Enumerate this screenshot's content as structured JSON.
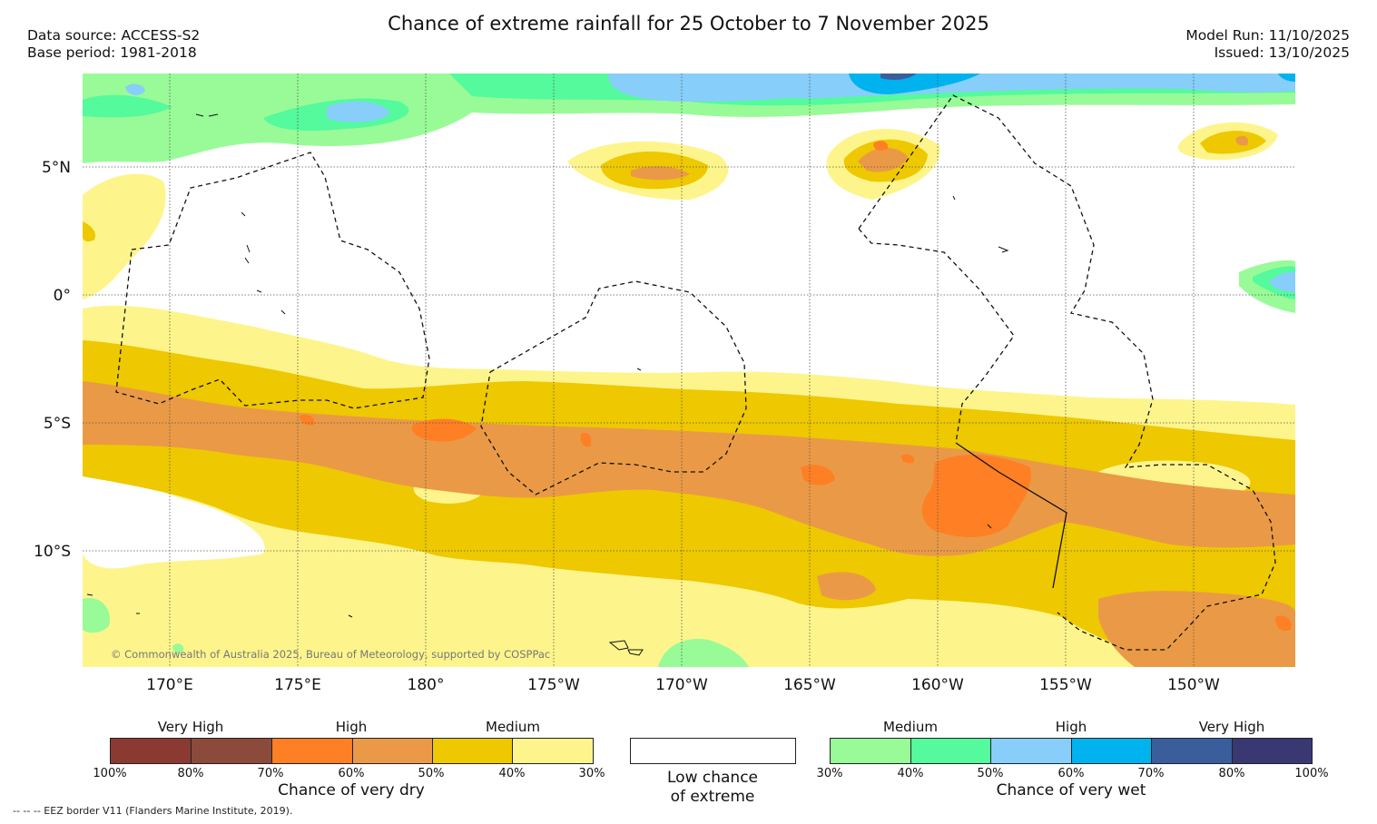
{
  "title": "Chance of extreme rainfall for 25 October to 7 November 2025",
  "meta_left": {
    "source": "Data source: ACCESS-S2",
    "base": "Base period: 1981-2018"
  },
  "meta_right": {
    "model_run": "Model Run: 11/10/2025",
    "issued": "Issued: 13/10/2025"
  },
  "map": {
    "lat_labels": [
      "5°N",
      "0°",
      "5°S",
      "10°S"
    ],
    "lon_labels": [
      "170°E",
      "175°E",
      "180°",
      "175°W",
      "170°W",
      "165°W",
      "160°W",
      "155°W",
      "150°W"
    ],
    "copyright": "© Commonwealth of Australia 2025, Bureau of Meteorology, supported by COSPPac"
  },
  "legend": {
    "dry": {
      "headings": [
        "Very High",
        "High",
        "Medium"
      ],
      "ticks": [
        "100%",
        "80%",
        "70%",
        "60%",
        "50%",
        "40%",
        "30%"
      ],
      "colors": [
        "#8b3a32",
        "#8b4a3a",
        "#ff7f24",
        "#ea9a46",
        "#eec800",
        "#fdf58c"
      ],
      "caption": "Chance of very dry"
    },
    "neutral": {
      "line1": "Low chance",
      "line2": "of extreme"
    },
    "wet": {
      "headings": [
        "Medium",
        "High",
        "Very High"
      ],
      "ticks": [
        "30%",
        "40%",
        "50%",
        "60%",
        "70%",
        "80%",
        "100%"
      ],
      "colors": [
        "#98fb98",
        "#54fa9b",
        "#87cefa",
        "#00b2ee",
        "#3a5e9c",
        "#3a3873"
      ],
      "caption": "Chance of very wet"
    }
  },
  "eez_note": "-- -- -- EEZ border V11 (Flanders Marine Institute, 2019)."
}
